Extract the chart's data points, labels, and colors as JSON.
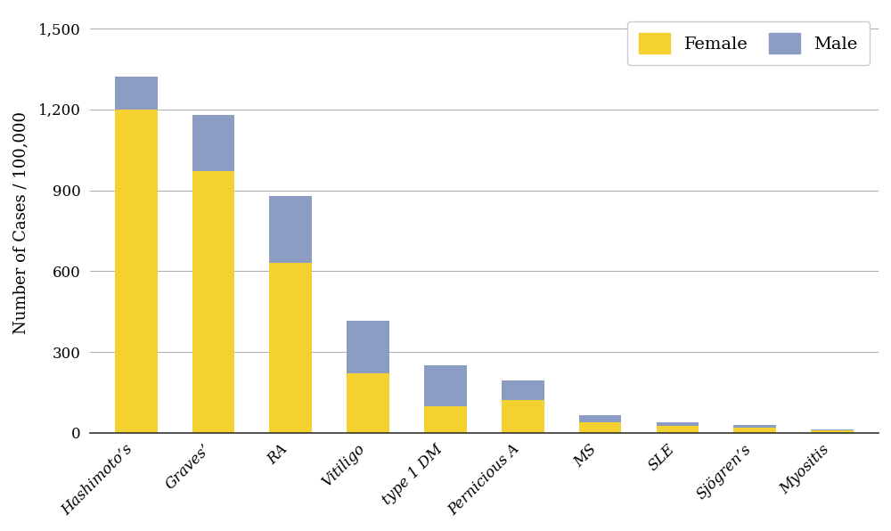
{
  "categories": [
    "Hashimoto’s",
    "Graves’",
    "RA",
    "Vitiligo",
    "type 1 DM",
    "Pernicious A",
    "MS",
    "SLE",
    "Sjögren’s",
    "Myositis"
  ],
  "female": [
    1200,
    970,
    630,
    220,
    100,
    120,
    40,
    25,
    18,
    8
  ],
  "male": [
    120,
    210,
    250,
    195,
    150,
    75,
    25,
    15,
    10,
    5
  ],
  "female_color": "#f5d130",
  "male_color": "#8b9dc3",
  "background_color": "#ffffff",
  "ylabel": "Number of Cases / 100,000",
  "yticks": [
    0,
    300,
    600,
    900,
    1200,
    1500
  ],
  "ytick_labels": [
    "0",
    "300",
    "600",
    "900",
    "1,200",
    "1,500"
  ],
  "ylim": [
    0,
    1560
  ],
  "legend_labels": [
    "Female",
    "Male"
  ],
  "grid_color": "#aaaaaa",
  "axis_color": "#333333",
  "bar_width": 0.55,
  "label_fontsize": 13,
  "tick_fontsize": 12,
  "legend_fontsize": 14
}
